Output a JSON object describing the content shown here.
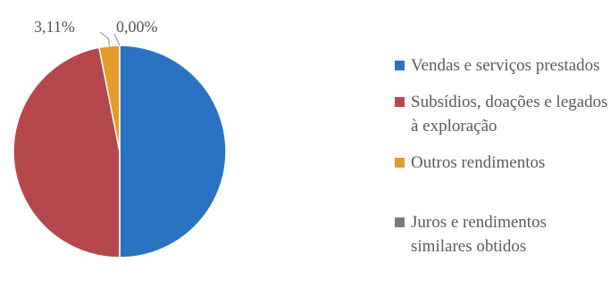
{
  "chart_data": {
    "type": "pie",
    "title": "",
    "slices": [
      {
        "label": "Vendas e serviços prestados",
        "value": 50.0,
        "value_label": "",
        "color": "#2a72c2"
      },
      {
        "label": "Subsídios, doações e legados à exploração",
        "value": 46.89,
        "value_label": "",
        "color": "#b5484d"
      },
      {
        "label": "Outros rendimentos",
        "value": 3.11,
        "value_label": "3,11%",
        "color": "#e49a2c"
      },
      {
        "label": "Juros e rendimentos similares obtidos",
        "value": 0.0,
        "value_label": "0,00%",
        "color": "#7a7a7a"
      }
    ],
    "legend_position": "right"
  }
}
